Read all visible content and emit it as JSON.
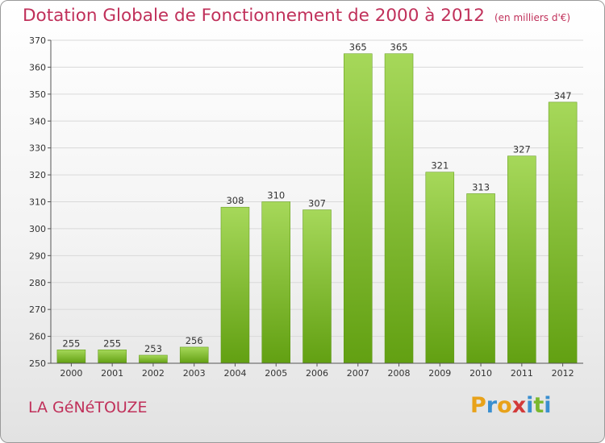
{
  "title": "Dotation Globale de Fonctionnement de 2000 à 2012",
  "subtitle": "(en milliers d'€)",
  "commune": "LA GéNéTOUZE",
  "brand": {
    "letters": [
      "P",
      "r",
      "o",
      "x",
      "i",
      "t",
      "i"
    ],
    "colors": [
      "#e8a21a",
      "#3a8fd0",
      "#e8a21a",
      "#d23a3a",
      "#3a8fd0",
      "#7ab82e",
      "#3a8fd0"
    ]
  },
  "colors": {
    "title": "#c0305a",
    "bar_light": "#a6d85a",
    "bar_dark": "#62a012",
    "grid": "#d9d9d9",
    "axis": "#555555"
  },
  "chart_data": {
    "type": "bar",
    "categories": [
      "2000",
      "2001",
      "2002",
      "2003",
      "2004",
      "2005",
      "2006",
      "2007",
      "2008",
      "2009",
      "2010",
      "2011",
      "2012"
    ],
    "values": [
      255,
      255,
      253,
      256,
      308,
      310,
      307,
      365,
      365,
      321,
      313,
      327,
      347
    ],
    "ylim": [
      250,
      370
    ],
    "yticks": [
      250,
      260,
      270,
      280,
      290,
      300,
      310,
      320,
      330,
      340,
      350,
      360,
      370
    ],
    "grid": true
  }
}
